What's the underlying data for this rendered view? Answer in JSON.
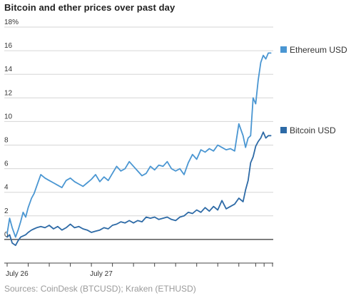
{
  "header": {
    "title": "Bitcoin and ether prices over past day"
  },
  "footer": {
    "source": "Sources: CoinDesk (BTCUSD); Kraken (ETHUSD)"
  },
  "chart_data": {
    "type": "line",
    "title": "Bitcoin and ether prices over past day",
    "xlabel": "",
    "ylabel": "",
    "x_unit": "hours since July 26 00:00",
    "xlim": [
      0,
      31.5
    ],
    "ylim": [
      -2,
      18
    ],
    "y_ticks": [
      {
        "value": 18,
        "label": "18%"
      },
      {
        "value": 16,
        "label": "16"
      },
      {
        "value": 14,
        "label": "14"
      },
      {
        "value": 12,
        "label": "12"
      },
      {
        "value": 10,
        "label": "10"
      },
      {
        "value": 8,
        "label": "8"
      },
      {
        "value": 6,
        "label": "6"
      },
      {
        "value": 4,
        "label": "4"
      },
      {
        "value": 2,
        "label": "2"
      },
      {
        "value": 0,
        "label": "0"
      }
    ],
    "x_ticks": [
      {
        "value": 0,
        "label": "July 26"
      },
      {
        "value": 10,
        "label": "July 27"
      }
    ],
    "x_minor_ticks": [
      0,
      2.5,
      5,
      7.5,
      10,
      12.5,
      15,
      17.5,
      20,
      22.5,
      25,
      27.5,
      29.5,
      30.5,
      31.5
    ],
    "grid": true,
    "legend": "right",
    "series": [
      {
        "name": "Ethereum USD",
        "color": "#4a96d2",
        "x": [
          0,
          0.3,
          0.6,
          1.0,
          1.3,
          1.6,
          1.9,
          2.2,
          2.5,
          2.9,
          3.2,
          3.5,
          4.0,
          4.5,
          5.0,
          5.5,
          6.0,
          6.5,
          7.0,
          7.5,
          8.0,
          8.5,
          9.0,
          9.5,
          10.0,
          10.5,
          11.0,
          11.5,
          12.0,
          12.5,
          13.0,
          13.5,
          14.0,
          14.5,
          15.0,
          15.5,
          16.0,
          16.5,
          17.0,
          17.5,
          18.0,
          18.5,
          19.0,
          19.5,
          20.0,
          20.5,
          21.0,
          21.5,
          22.0,
          22.5,
          23.0,
          23.5,
          24.0,
          24.5,
          25.0,
          25.5,
          26.0,
          26.5,
          27.0,
          27.5,
          28.0,
          28.3,
          28.6,
          28.9,
          29.2,
          29.5,
          29.8,
          30.1,
          30.4,
          30.7,
          31.0,
          31.3
        ],
        "values": [
          0.5,
          1.8,
          1.0,
          0.2,
          0.8,
          1.5,
          2.3,
          1.9,
          2.7,
          3.5,
          3.9,
          4.5,
          5.5,
          5.2,
          5.0,
          4.8,
          4.6,
          4.4,
          5.0,
          5.2,
          4.9,
          4.7,
          4.5,
          4.8,
          5.1,
          5.5,
          4.9,
          5.3,
          5.0,
          5.6,
          6.2,
          5.8,
          6.0,
          6.6,
          6.2,
          5.8,
          5.4,
          5.6,
          6.2,
          5.9,
          6.3,
          6.2,
          6.6,
          6.0,
          5.8,
          6.0,
          5.5,
          6.5,
          7.2,
          6.8,
          7.6,
          7.4,
          7.7,
          7.5,
          8.0,
          7.8,
          7.6,
          7.7,
          7.5,
          9.8,
          8.8,
          7.8,
          8.6,
          8.8,
          12.0,
          11.5,
          13.5,
          15.0,
          15.6,
          15.3,
          15.8,
          15.8
        ]
      },
      {
        "name": "Bitcoin USD",
        "color": "#2d6aa6",
        "x": [
          0,
          0.3,
          0.6,
          1.0,
          1.3,
          1.6,
          1.9,
          2.2,
          2.5,
          2.9,
          3.2,
          3.5,
          4.0,
          4.5,
          5.0,
          5.5,
          6.0,
          6.5,
          7.0,
          7.5,
          8.0,
          8.5,
          9.0,
          9.5,
          10.0,
          10.5,
          11.0,
          11.5,
          12.0,
          12.5,
          13.0,
          13.5,
          14.0,
          14.5,
          15.0,
          15.5,
          16.0,
          16.5,
          17.0,
          17.5,
          18.0,
          18.5,
          19.0,
          19.5,
          20.0,
          20.5,
          21.0,
          21.5,
          22.0,
          22.5,
          23.0,
          23.5,
          24.0,
          24.5,
          25.0,
          25.5,
          26.0,
          26.5,
          27.0,
          27.5,
          28.0,
          28.3,
          28.6,
          28.9,
          29.2,
          29.5,
          29.8,
          30.1,
          30.4,
          30.7,
          31.0,
          31.3
        ],
        "values": [
          0.2,
          0.4,
          -0.3,
          -0.5,
          -0.1,
          0.2,
          0.3,
          0.4,
          0.6,
          0.8,
          0.9,
          1.0,
          1.1,
          1.0,
          1.2,
          0.9,
          1.1,
          0.8,
          1.0,
          1.3,
          1.0,
          1.1,
          0.9,
          0.8,
          0.6,
          0.7,
          0.8,
          1.0,
          0.9,
          1.2,
          1.3,
          1.5,
          1.4,
          1.6,
          1.4,
          1.6,
          1.5,
          1.9,
          1.8,
          1.9,
          1.7,
          1.8,
          1.9,
          1.7,
          1.6,
          1.9,
          2.0,
          2.3,
          2.2,
          2.5,
          2.3,
          2.7,
          2.4,
          2.8,
          2.5,
          3.3,
          2.6,
          2.8,
          3.0,
          3.5,
          3.2,
          4.2,
          5.0,
          6.5,
          7.0,
          7.9,
          8.3,
          8.6,
          9.1,
          8.6,
          8.8,
          8.8
        ]
      }
    ]
  }
}
